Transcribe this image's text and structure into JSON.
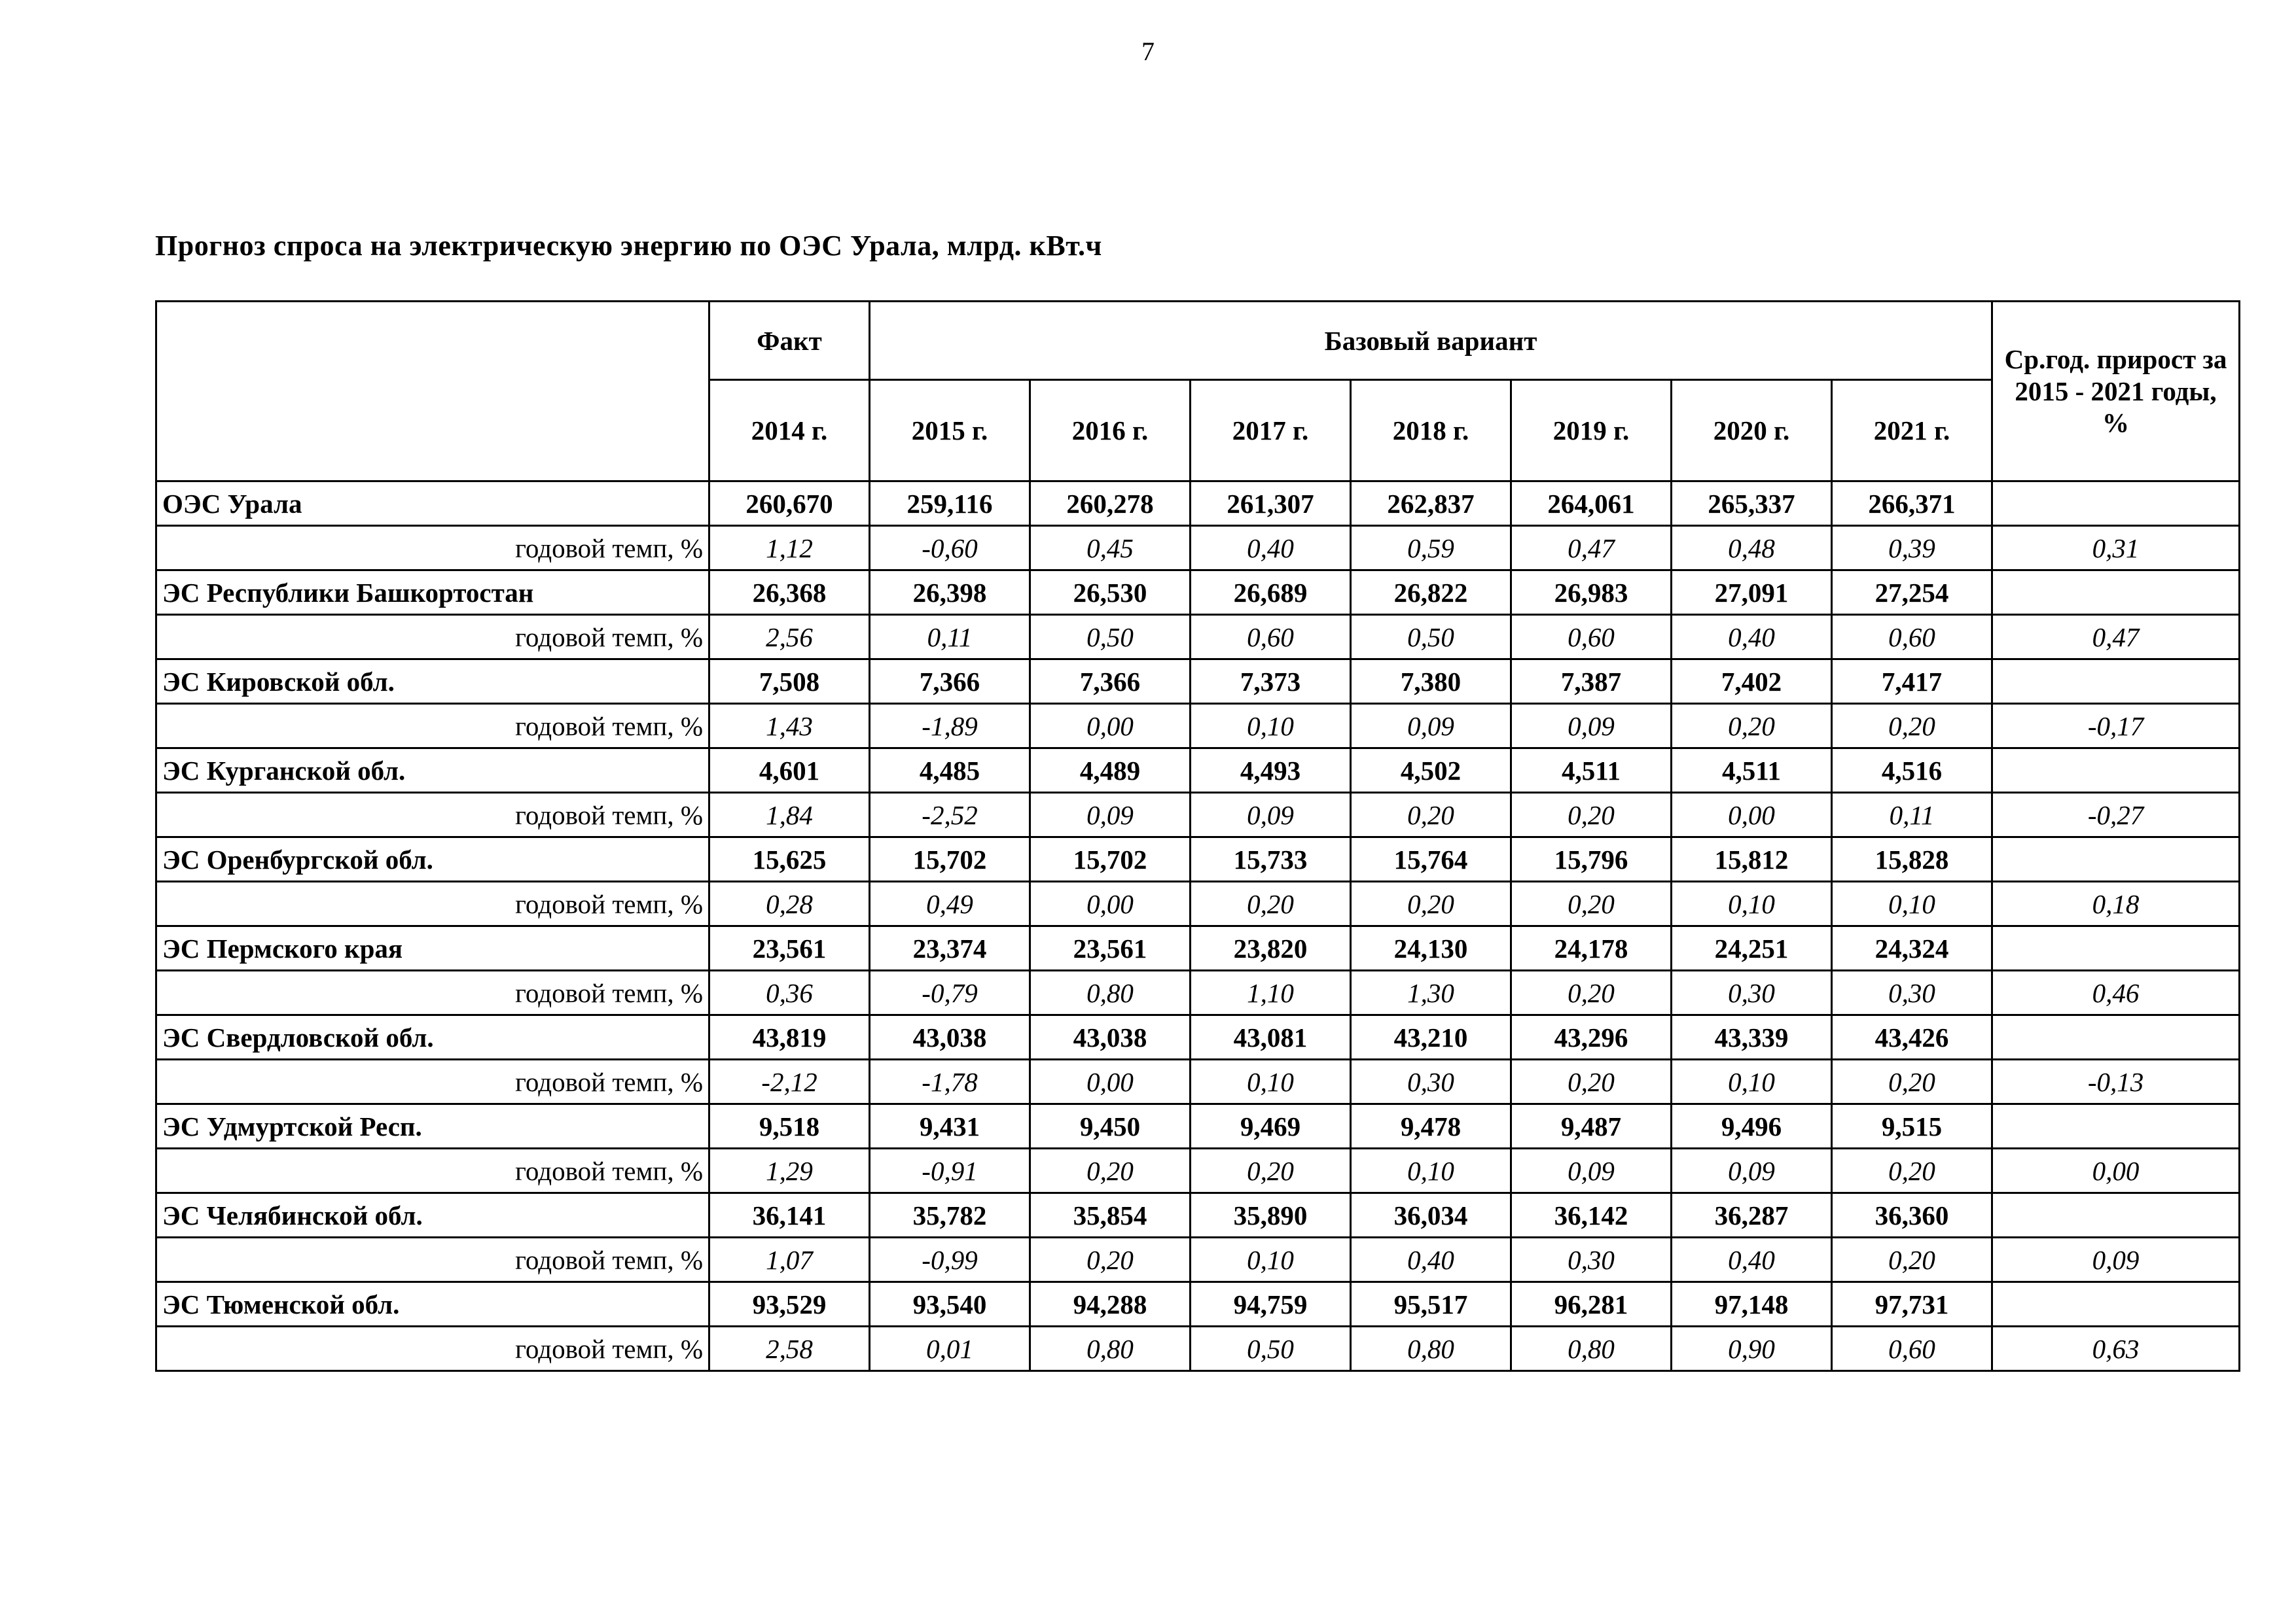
{
  "page": {
    "number": "7",
    "title": "Прогноз спроса на электрическую энергию по ОЭС Урала, млрд. кВт.ч"
  },
  "table": {
    "header": {
      "fact": "Факт",
      "base_variant": "Базовый вариант",
      "avg_growth": "Ср.год. прирост за 2015 - 2021 годы, %",
      "years": [
        "2014 г.",
        "2015 г.",
        "2016 г.",
        "2017 г.",
        "2018 г.",
        "2019 г.",
        "2020 г.",
        "2021 г."
      ]
    },
    "tempo_label": "годовой темп, %",
    "rows": [
      {
        "name": "ОЭС Урала",
        "values": [
          "260,670",
          "259,116",
          "260,278",
          "261,307",
          "262,837",
          "264,061",
          "265,337",
          "266,371"
        ],
        "tempo": [
          "1,12",
          "-0,60",
          "0,45",
          "0,40",
          "0,59",
          "0,47",
          "0,48",
          "0,39"
        ],
        "avg": "0,31"
      },
      {
        "name": "ЭС Республики Башкортостан",
        "values": [
          "26,368",
          "26,398",
          "26,530",
          "26,689",
          "26,822",
          "26,983",
          "27,091",
          "27,254"
        ],
        "tempo": [
          "2,56",
          "0,11",
          "0,50",
          "0,60",
          "0,50",
          "0,60",
          "0,40",
          "0,60"
        ],
        "avg": "0,47"
      },
      {
        "name": "ЭС Кировской обл.",
        "values": [
          "7,508",
          "7,366",
          "7,366",
          "7,373",
          "7,380",
          "7,387",
          "7,402",
          "7,417"
        ],
        "tempo": [
          "1,43",
          "-1,89",
          "0,00",
          "0,10",
          "0,09",
          "0,09",
          "0,20",
          "0,20"
        ],
        "avg": "-0,17"
      },
      {
        "name": "ЭС Курганской обл.",
        "values": [
          "4,601",
          "4,485",
          "4,489",
          "4,493",
          "4,502",
          "4,511",
          "4,511",
          "4,516"
        ],
        "tempo": [
          "1,84",
          "-2,52",
          "0,09",
          "0,09",
          "0,20",
          "0,20",
          "0,00",
          "0,11"
        ],
        "avg": "-0,27"
      },
      {
        "name": "ЭС Оренбургской обл.",
        "values": [
          "15,625",
          "15,702",
          "15,702",
          "15,733",
          "15,764",
          "15,796",
          "15,812",
          "15,828"
        ],
        "tempo": [
          "0,28",
          "0,49",
          "0,00",
          "0,20",
          "0,20",
          "0,20",
          "0,10",
          "0,10"
        ],
        "avg": "0,18"
      },
      {
        "name": "ЭС Пермского края",
        "values": [
          "23,561",
          "23,374",
          "23,561",
          "23,820",
          "24,130",
          "24,178",
          "24,251",
          "24,324"
        ],
        "tempo": [
          "0,36",
          "-0,79",
          "0,80",
          "1,10",
          "1,30",
          "0,20",
          "0,30",
          "0,30"
        ],
        "avg": "0,46"
      },
      {
        "name": "ЭС Свердловской обл.",
        "values": [
          "43,819",
          "43,038",
          "43,038",
          "43,081",
          "43,210",
          "43,296",
          "43,339",
          "43,426"
        ],
        "tempo": [
          "-2,12",
          "-1,78",
          "0,00",
          "0,10",
          "0,30",
          "0,20",
          "0,10",
          "0,20"
        ],
        "avg": "-0,13"
      },
      {
        "name": "ЭС Удмуртской Респ.",
        "values": [
          "9,518",
          "9,431",
          "9,450",
          "9,469",
          "9,478",
          "9,487",
          "9,496",
          "9,515"
        ],
        "tempo": [
          "1,29",
          "-0,91",
          "0,20",
          "0,20",
          "0,10",
          "0,09",
          "0,09",
          "0,20"
        ],
        "avg": "0,00"
      },
      {
        "name": "ЭС Челябинской обл.",
        "values": [
          "36,141",
          "35,782",
          "35,854",
          "35,890",
          "36,034",
          "36,142",
          "36,287",
          "36,360"
        ],
        "tempo": [
          "1,07",
          "-0,99",
          "0,20",
          "0,10",
          "0,40",
          "0,30",
          "0,40",
          "0,20"
        ],
        "avg": "0,09"
      },
      {
        "name": "ЭС Тюменской обл.",
        "values": [
          "93,529",
          "93,540",
          "94,288",
          "94,759",
          "95,517",
          "96,281",
          "97,148",
          "97,731"
        ],
        "tempo": [
          "2,58",
          "0,01",
          "0,80",
          "0,50",
          "0,80",
          "0,80",
          "0,90",
          "0,60"
        ],
        "avg": "0,63"
      }
    ]
  }
}
